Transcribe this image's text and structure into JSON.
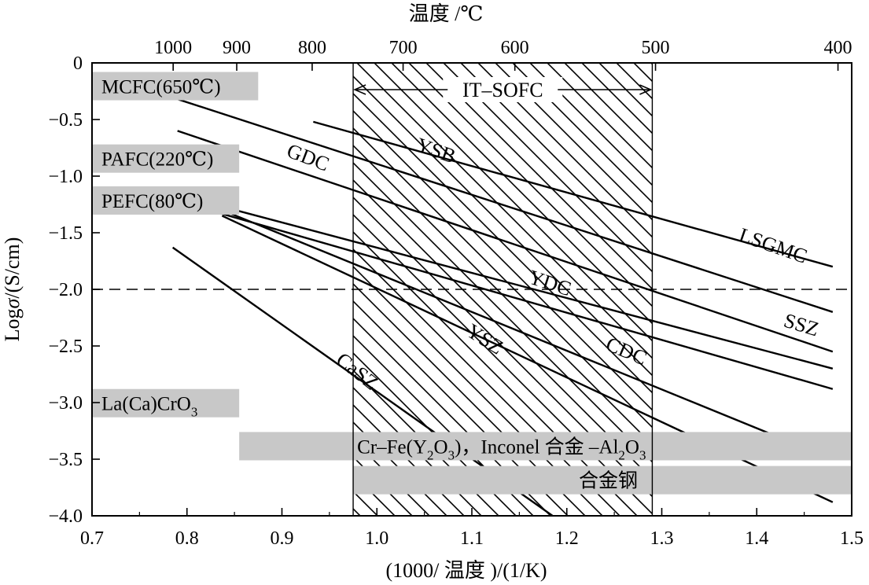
{
  "chart_data": {
    "type": "line",
    "title": "",
    "top_axis": {
      "label": "温度 /℃",
      "ticks": [
        {
          "temp": 1000,
          "label": "1000"
        },
        {
          "temp": 900,
          "label": "900"
        },
        {
          "temp": 800,
          "label": "800"
        },
        {
          "temp": 700,
          "label": "700"
        },
        {
          "temp": 600,
          "label": "600"
        },
        {
          "temp": 500,
          "label": "500"
        },
        {
          "temp": 400,
          "label": "400"
        }
      ]
    },
    "xlabel": "(1000/ 温度 )/(1/K)",
    "ylabel_prefix": "Log",
    "ylabel_symbol": "σ",
    "ylabel_suffix": "/(S/cm)",
    "xlim": [
      0.7,
      1.5
    ],
    "ylim": [
      -4.0,
      0
    ],
    "xticks": [
      "0.7",
      "0.8",
      "0.9",
      "1.0",
      "1.1",
      "1.2",
      "1.3",
      "1.4",
      "1.5"
    ],
    "yticks": [
      "0",
      "-0.5",
      "-1.0",
      "-1.5",
      "-2.0",
      "-2.5",
      "-3.0",
      "-3.5",
      "-4.0"
    ],
    "reference_line_y": -2.0,
    "it_sofc_region": {
      "x_start": 0.975,
      "x_end": 1.29,
      "label": "IT–SOFC"
    },
    "series": [
      {
        "name": "LSGMC",
        "x": [
          0.933,
          1.48
        ],
        "y": [
          -0.52,
          -1.8
        ],
        "label_x": 1.415,
        "label_y": -1.67,
        "label_rot": 19
      },
      {
        "name": "YSB",
        "x": [
          0.79,
          1.48
        ],
        "y": [
          -0.32,
          -2.2
        ],
        "label_x": 1.06,
        "label_y": -0.83,
        "label_rot": 19
      },
      {
        "name": "GDC",
        "x": [
          0.79,
          1.48
        ],
        "y": [
          -0.6,
          -2.55
        ],
        "label_x": 0.925,
        "label_y": -0.89,
        "label_rot": 21
      },
      {
        "name": "SSZ",
        "x": [
          0.815,
          1.48
        ],
        "y": [
          -1.22,
          -2.7
        ],
        "label_x": 1.445,
        "label_y": -2.37,
        "label_rot": 17
      },
      {
        "name": "YDC",
        "x": [
          0.815,
          1.48
        ],
        "y": [
          -1.28,
          -2.88
        ],
        "label_x": 1.18,
        "label_y": -2.0,
        "label_rot": 18
      },
      {
        "name": "CDC",
        "x": [
          0.837,
          1.48
        ],
        "y": [
          -1.3,
          -3.5
        ],
        "label_x": 1.26,
        "label_y": -2.6,
        "label_rot": 23
      },
      {
        "name": "YSZ",
        "x": [
          0.837,
          1.48
        ],
        "y": [
          -1.35,
          -3.88
        ],
        "label_x": 1.11,
        "label_y": -2.49,
        "label_rot": 32
      },
      {
        "name": "CaSZ",
        "x": [
          0.785,
          1.185
        ],
        "y": [
          -1.63,
          -4.0
        ],
        "label_x": 0.975,
        "label_y": -2.77,
        "label_rot": 38
      }
    ],
    "bands": [
      {
        "label": "MCFC(650℃)",
        "x0": 0.7,
        "x1": 0.875,
        "y_top": -0.08,
        "y_bot": -0.33
      },
      {
        "label": "PAFC(220℃)",
        "x0": 0.7,
        "x1": 0.855,
        "y_top": -0.72,
        "y_bot": -0.97
      },
      {
        "label": "PEFC(80℃)",
        "x0": 0.7,
        "x1": 0.855,
        "y_top": -1.09,
        "y_bot": -1.34
      },
      {
        "label": "La(Ca)CrO",
        "sub": "3",
        "x0": 0.7,
        "x1": 0.855,
        "y_top": -2.88,
        "y_bot": -3.13
      },
      {
        "label": "Cr–Fe(Y",
        "label_mid": "O",
        "label_tail": ")，Inconel 合金 –Al",
        "label_end": "O",
        "sub": "2",
        "sub2": "3",
        "sub3": "2",
        "sub4": "3",
        "x0": 0.855,
        "x1": 1.5,
        "y_top": -3.26,
        "y_bot": -3.51
      },
      {
        "label": "合金钢",
        "x0": 0.975,
        "x1": 1.5,
        "y_top": -3.56,
        "y_bot": -3.81
      }
    ]
  }
}
